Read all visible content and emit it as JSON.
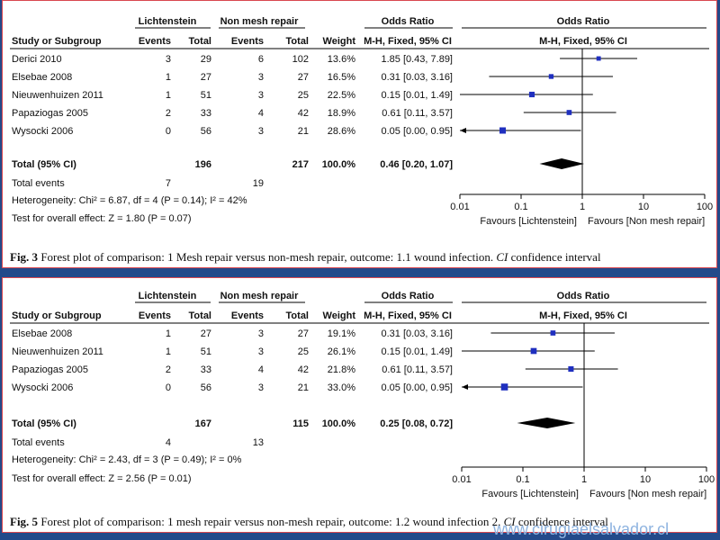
{
  "chart_data": [
    {
      "type": "forest",
      "group_labels": {
        "experimental": "Lichtenstein",
        "control": "Non mesh repair",
        "effect_left": "Odds Ratio",
        "effect_right": "Odds Ratio"
      },
      "column_headers": [
        "Study or Subgroup",
        "Events",
        "Total",
        "Events",
        "Total",
        "Weight",
        "M-H, Fixed, 95% CI",
        "M-H, Fixed, 95% CI"
      ],
      "studies": [
        {
          "name": "Derici 2010",
          "e_events": "3",
          "e_total": "29",
          "c_events": "6",
          "c_total": "102",
          "weight": "13.6%",
          "ci_text": "1.85 [0.43, 7.89]",
          "or": 1.85,
          "lo": 0.43,
          "hi": 7.89,
          "w": 13.6
        },
        {
          "name": "Elsebae 2008",
          "e_events": "1",
          "e_total": "27",
          "c_events": "3",
          "c_total": "27",
          "weight": "16.5%",
          "ci_text": "0.31 [0.03, 3.16]",
          "or": 0.31,
          "lo": 0.03,
          "hi": 3.16,
          "w": 16.5
        },
        {
          "name": "Nieuwenhuizen 2011",
          "e_events": "1",
          "e_total": "51",
          "c_events": "3",
          "c_total": "25",
          "weight": "22.5%",
          "ci_text": "0.15 [0.01, 1.49]",
          "or": 0.15,
          "lo": 0.01,
          "hi": 1.49,
          "w": 22.5
        },
        {
          "name": "Papaziogas 2005",
          "e_events": "2",
          "e_total": "33",
          "c_events": "4",
          "c_total": "42",
          "weight": "18.9%",
          "ci_text": "0.61 [0.11, 3.57]",
          "or": 0.61,
          "lo": 0.11,
          "hi": 3.57,
          "w": 18.9
        },
        {
          "name": "Wysocki 2006",
          "e_events": "0",
          "e_total": "56",
          "c_events": "3",
          "c_total": "21",
          "weight": "28.6%",
          "ci_text": "0.05 [0.00, 0.95]",
          "or": 0.05,
          "lo": 0.0,
          "hi": 0.95,
          "w": 28.6
        }
      ],
      "total": {
        "label": "Total (95% CI)",
        "e_total": "196",
        "c_total": "217",
        "weight": "100.0%",
        "ci_text": "0.46 [0.20, 1.07]",
        "or": 0.46,
        "lo": 0.2,
        "hi": 1.07
      },
      "total_events": {
        "label": "Total events",
        "e": "7",
        "c": "19"
      },
      "heterogeneity": "Heterogeneity: Chi² = 6.87, df = 4 (P = 0.14); I² = 42%",
      "overall_effect": "Test for overall effect: Z = 1.80 (P = 0.07)",
      "x_scale": "log",
      "x_ticks": [
        0.01,
        0.1,
        1,
        10,
        100
      ],
      "x_tick_labels": [
        "0.01",
        "0.1",
        "1",
        "10",
        "100"
      ],
      "favours_left": "Favours [Lichtenstein]",
      "favours_right": "Favours [Non mesh repair]",
      "caption": {
        "fig": "Fig. 3",
        "text": "Forest plot of comparison: 1 Mesh repair versus non-mesh repair, outcome: 1.1 wound infection.",
        "ci": "CI",
        "tail": "confidence interval"
      }
    },
    {
      "type": "forest",
      "group_labels": {
        "experimental": "Lichtenstein",
        "control": "Non mesh repair",
        "effect_left": "Odds Ratio",
        "effect_right": "Odds Ratio"
      },
      "column_headers": [
        "Study or Subgroup",
        "Events",
        "Total",
        "Events",
        "Total",
        "Weight",
        "M-H, Fixed, 95% CI",
        "M-H, Fixed, 95% CI"
      ],
      "studies": [
        {
          "name": "Elsebae 2008",
          "e_events": "1",
          "e_total": "27",
          "c_events": "3",
          "c_total": "27",
          "weight": "19.1%",
          "ci_text": "0.31 [0.03, 3.16]",
          "or": 0.31,
          "lo": 0.03,
          "hi": 3.16,
          "w": 19.1
        },
        {
          "name": "Nieuwenhuizen 2011",
          "e_events": "1",
          "e_total": "51",
          "c_events": "3",
          "c_total": "25",
          "weight": "26.1%",
          "ci_text": "0.15 [0.01, 1.49]",
          "or": 0.15,
          "lo": 0.01,
          "hi": 1.49,
          "w": 26.1
        },
        {
          "name": "Papaziogas 2005",
          "e_events": "2",
          "e_total": "33",
          "c_events": "4",
          "c_total": "42",
          "weight": "21.8%",
          "ci_text": "0.61 [0.11, 3.57]",
          "or": 0.61,
          "lo": 0.11,
          "hi": 3.57,
          "w": 21.8
        },
        {
          "name": "Wysocki 2006",
          "e_events": "0",
          "e_total": "56",
          "c_events": "3",
          "c_total": "21",
          "weight": "33.0%",
          "ci_text": "0.05 [0.00, 0.95]",
          "or": 0.05,
          "lo": 0.0,
          "hi": 0.95,
          "w": 33.0
        }
      ],
      "total": {
        "label": "Total (95% CI)",
        "e_total": "167",
        "c_total": "115",
        "weight": "100.0%",
        "ci_text": "0.25 [0.08, 0.72]",
        "or": 0.25,
        "lo": 0.08,
        "hi": 0.72
      },
      "total_events": {
        "label": "Total events",
        "e": "4",
        "c": "13"
      },
      "heterogeneity": "Heterogeneity: Chi² = 2.43, df = 3 (P = 0.49); I² = 0%",
      "overall_effect": "Test for overall effect: Z = 2.56 (P = 0.01)",
      "x_scale": "log",
      "x_ticks": [
        0.01,
        0.1,
        1,
        10,
        100
      ],
      "x_tick_labels": [
        "0.01",
        "0.1",
        "1",
        "10",
        "100"
      ],
      "favours_left": "Favours [Lichtenstein]",
      "favours_right": "Favours [Non mesh repair]",
      "caption": {
        "fig": "Fig. 5",
        "text": "Forest plot of comparison: 1 mesh repair versus non-mesh repair, outcome: 1.2 wound infection 2.",
        "ci": "CI",
        "tail": "confidence interval"
      }
    }
  ],
  "watermark": "www.cirugiaelsalvador.cl",
  "colors": {
    "background": "#234a8a",
    "panel_border": "#d9474f",
    "marker": "#1f2fbf",
    "diamond": "#000000"
  }
}
